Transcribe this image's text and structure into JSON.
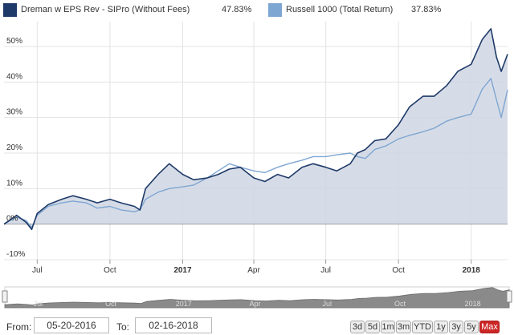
{
  "legend": {
    "items": [
      {
        "name": "Dreman w EPS Rev - SIPro (Without Fees)",
        "value": "47.83%",
        "color": "#1f3a68"
      },
      {
        "name": "Russell 1000 (Total Return)",
        "value": "37.83%",
        "color": "#7ea6d2"
      }
    ]
  },
  "chart_data": {
    "type": "line",
    "xlim": [
      "2016-05-20",
      "2018-02-16"
    ],
    "ylim": [
      -10,
      57
    ],
    "yticks": [
      -10,
      0,
      10,
      20,
      30,
      40,
      50
    ],
    "ytick_labels": [
      "-10%",
      "0%",
      "10%",
      "20%",
      "30%",
      "40%",
      "50%"
    ],
    "xticks": [
      {
        "date": "2016-07-01",
        "label": "Jul",
        "bold": false
      },
      {
        "date": "2016-10-01",
        "label": "Oct",
        "bold": false
      },
      {
        "date": "2017-01-01",
        "label": "2017",
        "bold": true
      },
      {
        "date": "2017-04-01",
        "label": "Apr",
        "bold": false
      },
      {
        "date": "2017-07-01",
        "label": "Jul",
        "bold": false
      },
      {
        "date": "2017-10-01",
        "label": "Oct",
        "bold": false
      },
      {
        "date": "2018-01-01",
        "label": "2018",
        "bold": true
      }
    ],
    "grid": true,
    "series": [
      {
        "name": "Dreman w EPS Rev - SIPro (Without Fees)",
        "color": "#1f3a68",
        "points": [
          [
            "2016-05-20",
            0
          ],
          [
            "2016-06-05",
            2.5
          ],
          [
            "2016-06-17",
            0.5
          ],
          [
            "2016-06-24",
            -1.5
          ],
          [
            "2016-07-01",
            3
          ],
          [
            "2016-07-15",
            5.5
          ],
          [
            "2016-08-01",
            7
          ],
          [
            "2016-08-15",
            8
          ],
          [
            "2016-09-01",
            7
          ],
          [
            "2016-09-15",
            6
          ],
          [
            "2016-10-01",
            7
          ],
          [
            "2016-10-15",
            6
          ],
          [
            "2016-11-01",
            5
          ],
          [
            "2016-11-08",
            4
          ],
          [
            "2016-11-15",
            10
          ],
          [
            "2016-12-01",
            14
          ],
          [
            "2016-12-15",
            17
          ],
          [
            "2017-01-01",
            14
          ],
          [
            "2017-01-15",
            12.5
          ],
          [
            "2017-02-01",
            13
          ],
          [
            "2017-02-15",
            14
          ],
          [
            "2017-03-01",
            15.5
          ],
          [
            "2017-03-15",
            16
          ],
          [
            "2017-04-01",
            13
          ],
          [
            "2017-04-15",
            12
          ],
          [
            "2017-05-01",
            14
          ],
          [
            "2017-05-15",
            13
          ],
          [
            "2017-06-01",
            16
          ],
          [
            "2017-06-15",
            17
          ],
          [
            "2017-07-01",
            16
          ],
          [
            "2017-07-15",
            15
          ],
          [
            "2017-08-01",
            17
          ],
          [
            "2017-08-10",
            20
          ],
          [
            "2017-08-20",
            21
          ],
          [
            "2017-09-01",
            23.5
          ],
          [
            "2017-09-15",
            24
          ],
          [
            "2017-10-01",
            28
          ],
          [
            "2017-10-15",
            33
          ],
          [
            "2017-11-01",
            36
          ],
          [
            "2017-11-15",
            36
          ],
          [
            "2017-12-01",
            39
          ],
          [
            "2017-12-15",
            43
          ],
          [
            "2018-01-01",
            45
          ],
          [
            "2018-01-15",
            52
          ],
          [
            "2018-01-26",
            55
          ],
          [
            "2018-02-02",
            47
          ],
          [
            "2018-02-08",
            43
          ],
          [
            "2018-02-16",
            47.83
          ]
        ]
      },
      {
        "name": "Russell 1000 (Total Return)",
        "color": "#7ea6d2",
        "points": [
          [
            "2016-05-20",
            0
          ],
          [
            "2016-06-05",
            2
          ],
          [
            "2016-06-17",
            1
          ],
          [
            "2016-06-24",
            -1
          ],
          [
            "2016-07-01",
            2.5
          ],
          [
            "2016-07-15",
            5
          ],
          [
            "2016-08-01",
            6
          ],
          [
            "2016-08-15",
            6.5
          ],
          [
            "2016-09-01",
            6
          ],
          [
            "2016-09-15",
            4.5
          ],
          [
            "2016-10-01",
            5
          ],
          [
            "2016-10-15",
            4
          ],
          [
            "2016-11-01",
            3.5
          ],
          [
            "2016-11-08",
            4
          ],
          [
            "2016-11-15",
            7
          ],
          [
            "2016-12-01",
            9
          ],
          [
            "2016-12-15",
            10
          ],
          [
            "2017-01-01",
            10.5
          ],
          [
            "2017-01-15",
            11
          ],
          [
            "2017-02-01",
            13
          ],
          [
            "2017-02-15",
            15
          ],
          [
            "2017-03-01",
            17
          ],
          [
            "2017-03-15",
            16
          ],
          [
            "2017-04-01",
            15
          ],
          [
            "2017-04-15",
            14.5
          ],
          [
            "2017-05-01",
            16
          ],
          [
            "2017-05-15",
            17
          ],
          [
            "2017-06-01",
            18
          ],
          [
            "2017-06-15",
            19
          ],
          [
            "2017-07-01",
            19
          ],
          [
            "2017-07-15",
            19.5
          ],
          [
            "2017-08-01",
            20
          ],
          [
            "2017-08-10",
            19
          ],
          [
            "2017-08-20",
            18.5
          ],
          [
            "2017-09-01",
            21
          ],
          [
            "2017-09-15",
            22
          ],
          [
            "2017-10-01",
            24
          ],
          [
            "2017-10-15",
            25
          ],
          [
            "2017-11-01",
            26
          ],
          [
            "2017-11-15",
            27
          ],
          [
            "2017-12-01",
            29
          ],
          [
            "2017-12-15",
            30
          ],
          [
            "2018-01-01",
            31
          ],
          [
            "2018-01-15",
            38
          ],
          [
            "2018-01-26",
            41
          ],
          [
            "2018-02-02",
            35
          ],
          [
            "2018-02-08",
            30
          ],
          [
            "2018-02-16",
            37.83
          ]
        ]
      }
    ]
  },
  "navigator": {
    "xticks": [
      {
        "date": "2016-07-01",
        "label": "Jul"
      },
      {
        "date": "2016-10-01",
        "label": "Oct"
      },
      {
        "date": "2017-01-01",
        "label": "2017"
      },
      {
        "date": "2017-04-01",
        "label": "Apr"
      },
      {
        "date": "2017-07-01",
        "label": "Jul"
      },
      {
        "date": "2017-10-01",
        "label": "Oct"
      },
      {
        "date": "2018-01-01",
        "label": "2018"
      }
    ]
  },
  "controls": {
    "from_label": "From:",
    "from_value": "05-20-2016",
    "to_label": "To:",
    "to_value": "02-16-2018",
    "ranges": [
      {
        "label": "3d",
        "selected": false
      },
      {
        "label": "5d",
        "selected": false
      },
      {
        "label": "1m",
        "selected": false
      },
      {
        "label": "3m",
        "selected": false
      },
      {
        "label": "YTD",
        "selected": false
      },
      {
        "label": "1y",
        "selected": false
      },
      {
        "label": "3y",
        "selected": false
      },
      {
        "label": "5y",
        "selected": false
      },
      {
        "label": "Max",
        "selected": true
      }
    ]
  }
}
